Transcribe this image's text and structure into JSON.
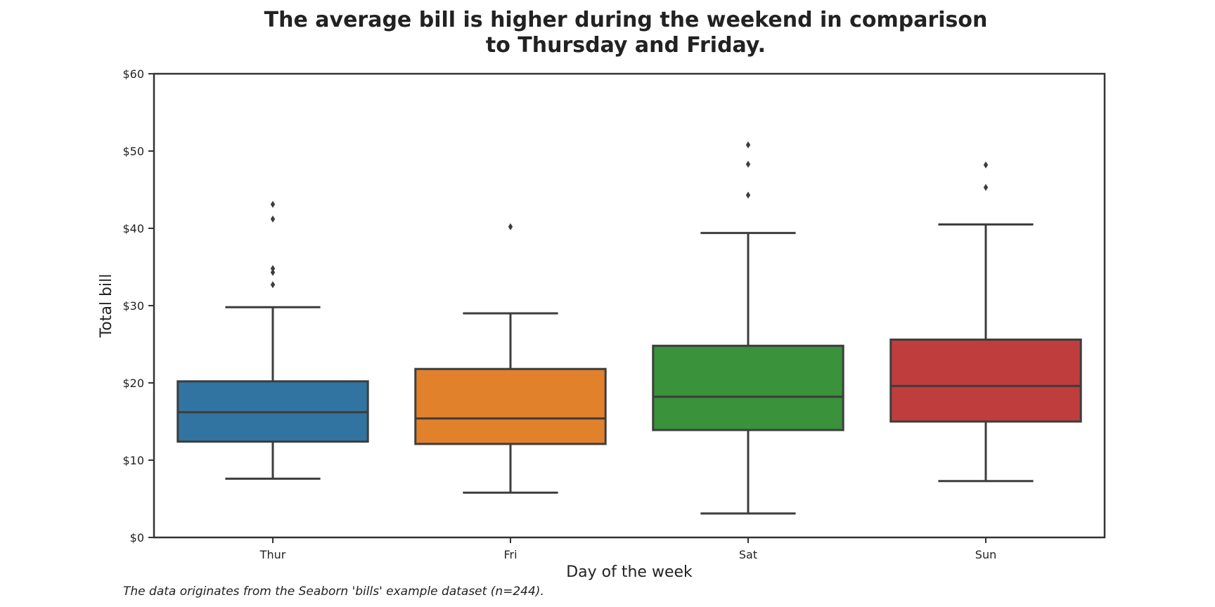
{
  "chart_data": {
    "type": "boxplot",
    "title_lines": [
      "The average bill is higher during the weekend in comparison",
      "to Thursday and Friday."
    ],
    "xlabel": "Day of the week",
    "ylabel": "Total bill",
    "ylim": [
      0,
      60
    ],
    "yticks": [
      0,
      10,
      20,
      30,
      40,
      50,
      60
    ],
    "ytick_labels": [
      "$0",
      "$10",
      "$20",
      "$30",
      "$40",
      "$50",
      "$60"
    ],
    "grid": false,
    "categories": [
      "Thur",
      "Fri",
      "Sat",
      "Sun"
    ],
    "boxes": [
      {
        "category": "Thur",
        "color": "#3274a1",
        "whisker_low": 7.6,
        "q1": 12.4,
        "median": 16.2,
        "q3": 20.2,
        "whisker_high": 29.8,
        "outliers": [
          32.7,
          34.3,
          34.8,
          41.2,
          43.1
        ]
      },
      {
        "category": "Fri",
        "color": "#e1812c",
        "whisker_low": 5.8,
        "q1": 12.1,
        "median": 15.4,
        "q3": 21.8,
        "whisker_high": 29.0,
        "outliers": [
          40.2
        ]
      },
      {
        "category": "Sat",
        "color": "#3a923a",
        "whisker_low": 3.1,
        "q1": 13.9,
        "median": 18.2,
        "q3": 24.8,
        "whisker_high": 39.4,
        "outliers": [
          44.3,
          48.3,
          50.8
        ]
      },
      {
        "category": "Sun",
        "color": "#c03d3e",
        "whisker_low": 7.3,
        "q1": 15.0,
        "median": 19.6,
        "q3": 25.6,
        "whisker_high": 40.5,
        "outliers": [
          45.3,
          48.2
        ]
      }
    ],
    "footnote": "The data originates from the Seaborn 'bills' example dataset (n=244)."
  }
}
